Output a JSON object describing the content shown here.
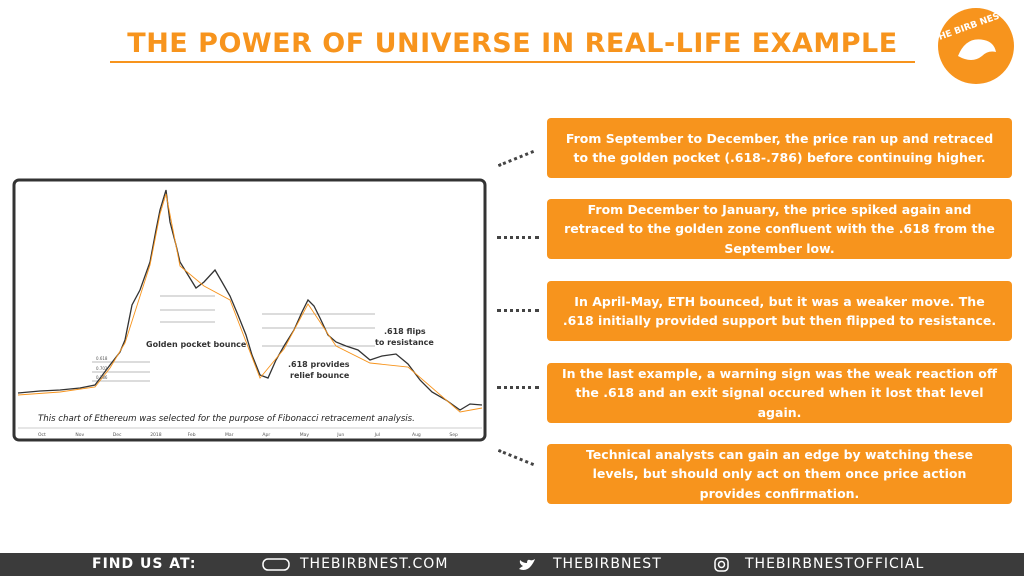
{
  "header": {
    "title": "THE POWER OF UNIVERSE IN REAL-LIFE EXAMPLE",
    "logo": "THE BIRB NEST"
  },
  "chart": {
    "levels": [
      "0.618",
      "0.702",
      "0.786"
    ],
    "annotations": {
      "golden_pocket": "Golden pocket bounce",
      "relief": [
        ".618 provides",
        "relief bounce"
      ],
      "flips": [
        ".618 flips",
        "to resistance"
      ]
    },
    "caption": "This chart of Ethereum was selected for the purpose of Fibonacci retracement analysis.",
    "x_labels": [
      "Oct",
      "Nov",
      "Dec",
      "2018",
      "Feb",
      "Mar",
      "Apr",
      "May",
      "Jun",
      "Jul",
      "Aug",
      "Sep"
    ]
  },
  "notes": [
    "From September to December, the price ran up and retraced to the golden pocket (.618-.786) before continuing higher.",
    "From December to January, the price spiked again and retraced to the golden zone confluent with the .618 from the September low.",
    "In April-May, ETH bounced, but it was a weaker move. The .618 initially provided support but then flipped to resistance.",
    "In the last example, a warning sign was the weak reaction off the .618 and an exit signal occured when it lost that level again.",
    "Technical analysts can gain an edge by watching these levels, but should only act on them once price action provides confirmation."
  ],
  "footer": {
    "find_us": "FIND US AT:",
    "website": "THEBIRBNEST.COM",
    "twitter": "THEBIRBNEST",
    "instagram": "THEBIRBNESTOFFICIAL"
  }
}
